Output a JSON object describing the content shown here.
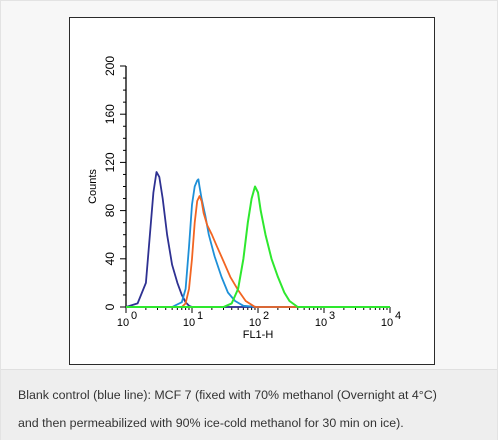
{
  "chart_data": {
    "type": "line",
    "xlabel": "FL1-H",
    "ylabel": "Counts",
    "x_scale": "log",
    "xlim": [
      1,
      10000
    ],
    "ylim": [
      0,
      200
    ],
    "x_ticks": [
      "10",
      "10",
      "10",
      "10",
      "10"
    ],
    "x_tick_exponents": [
      "0",
      "1",
      "2",
      "3",
      "4"
    ],
    "y_ticks": [
      "0",
      "40",
      "80",
      "120",
      "160",
      "200"
    ],
    "grid": false,
    "legend": "none",
    "series": [
      {
        "color": "#2e3192",
        "x": [
          1,
          1.5,
          2,
          2.3,
          2.6,
          2.9,
          3.2,
          3.6,
          4.2,
          5,
          6,
          7,
          8,
          9,
          10,
          10000
        ],
        "y": [
          0,
          3,
          20,
          60,
          95,
          112,
          108,
          90,
          60,
          35,
          20,
          10,
          4,
          1,
          0,
          0
        ]
      },
      {
        "color": "#1e90d8",
        "x": [
          1,
          5,
          7,
          8,
          9,
          10,
          11,
          12,
          12.5,
          13,
          14,
          16,
          18,
          22,
          28,
          35,
          45,
          60,
          100,
          10000
        ],
        "y": [
          0,
          0,
          4,
          15,
          50,
          85,
          100,
          105,
          106,
          100,
          90,
          75,
          60,
          42,
          25,
          12,
          5,
          1,
          0,
          0
        ]
      },
      {
        "color": "#f26522",
        "x": [
          1,
          7,
          8,
          9,
          10,
          11,
          12,
          13,
          14,
          15,
          17,
          20,
          24,
          30,
          38,
          50,
          65,
          90,
          10000
        ],
        "y": [
          0,
          0,
          3,
          15,
          40,
          70,
          88,
          92,
          88,
          78,
          68,
          60,
          50,
          38,
          25,
          14,
          5,
          0,
          0
        ]
      },
      {
        "color": "#2ee82e",
        "x": [
          1,
          30,
          40,
          50,
          60,
          70,
          80,
          90,
          100,
          110,
          130,
          160,
          200,
          250,
          300,
          400,
          10000
        ],
        "y": [
          0,
          0,
          3,
          15,
          40,
          70,
          90,
          100,
          95,
          80,
          60,
          40,
          25,
          12,
          5,
          0,
          0
        ]
      }
    ]
  },
  "caption": {
    "line1": "Blank control (blue line): MCF 7 (fixed with 70% methanol (Overnight at 4°C)",
    "line2": "and then permeabilized with 90% ice-cold methanol for 30 min on ice)."
  }
}
